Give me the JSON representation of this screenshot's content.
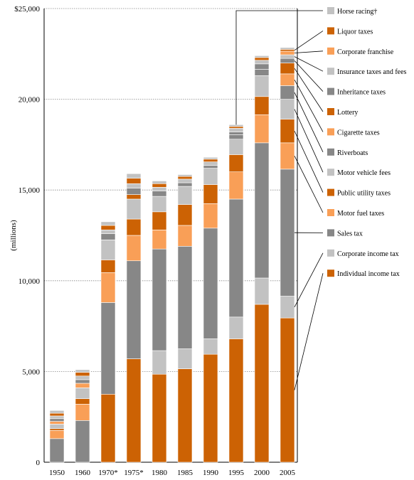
{
  "chart_data": {
    "type": "bar",
    "stacked": true,
    "ylabel": "(millions)",
    "ylim": [
      0,
      25000
    ],
    "yticks": [
      {
        "value": 0,
        "label": "0"
      },
      {
        "value": 5000,
        "label": "5,000"
      },
      {
        "value": 10000,
        "label": "10,000"
      },
      {
        "value": 15000,
        "label": "15,000"
      },
      {
        "value": 20000,
        "label": "20,000"
      },
      {
        "value": 25000,
        "label": "$25,000"
      }
    ],
    "grid": true,
    "legend_position": "right",
    "categories": [
      "1950",
      "1960",
      "1970*",
      "1975*",
      "1980",
      "1985",
      "1990",
      "1995",
      "2000",
      "2005"
    ],
    "series": [
      {
        "name": "Individual income tax",
        "color": "#cc6204",
        "values": [
          0,
          0,
          3750,
          5700,
          4850,
          5150,
          5950,
          6800,
          8700,
          7950
        ]
      },
      {
        "name": "Corporate income tax",
        "color": "#c2c2c2",
        "values": [
          0,
          0,
          0,
          0,
          1300,
          1100,
          850,
          1200,
          1450,
          1200
        ]
      },
      {
        "name": "Sales tax",
        "color": "#878787",
        "values": [
          1300,
          2300,
          5050,
          5400,
          5600,
          5650,
          6100,
          6500,
          7450,
          7000
        ]
      },
      {
        "name": "Motor fuel taxes",
        "color": "#f99f57",
        "values": [
          450,
          900,
          1650,
          1400,
          1050,
          1150,
          1350,
          1500,
          1550,
          1450
        ]
      },
      {
        "name": "Public utility taxes",
        "color": "#cc6204",
        "values": [
          100,
          300,
          700,
          900,
          1000,
          1150,
          1050,
          950,
          1000,
          1300
        ]
      },
      {
        "name": "Motor vehicle fees",
        "color": "#c2c2c2",
        "values": [
          250,
          600,
          1100,
          1100,
          850,
          1000,
          900,
          850,
          1150,
          1100
        ]
      },
      {
        "name": "Riverboats",
        "color": "#878787",
        "values": [
          0,
          0,
          0,
          0,
          0,
          0,
          0,
          250,
          350,
          750
        ]
      },
      {
        "name": "Cigarette taxes",
        "color": "#f99f57",
        "values": [
          150,
          250,
          0,
          0,
          0,
          0,
          0,
          0,
          0,
          650
        ]
      },
      {
        "name": "Lottery",
        "color": "#cc6204",
        "values": [
          0,
          0,
          0,
          250,
          0,
          0,
          0,
          0,
          0,
          600
        ]
      },
      {
        "name": "Inheritance taxes",
        "color": "#878787",
        "values": [
          150,
          200,
          350,
          350,
          300,
          200,
          150,
          150,
          300,
          250
        ]
      },
      {
        "name": "Insurance taxes and fees",
        "color": "#c2c2c2",
        "values": [
          150,
          200,
          200,
          250,
          200,
          200,
          200,
          200,
          200,
          200
        ]
      },
      {
        "name": "Corporate franchise",
        "color": "#f99f57",
        "values": [
          0,
          0,
          0,
          0,
          0,
          0,
          0,
          0,
          0,
          200
        ]
      },
      {
        "name": "Liquor taxes",
        "color": "#cc6204",
        "values": [
          150,
          200,
          250,
          300,
          200,
          150,
          150,
          100,
          150,
          100
        ]
      },
      {
        "name": "Horse racing†",
        "color": "#c2c2c2",
        "values": [
          150,
          150,
          200,
          250,
          150,
          100,
          100,
          100,
          100,
          100
        ]
      }
    ]
  }
}
